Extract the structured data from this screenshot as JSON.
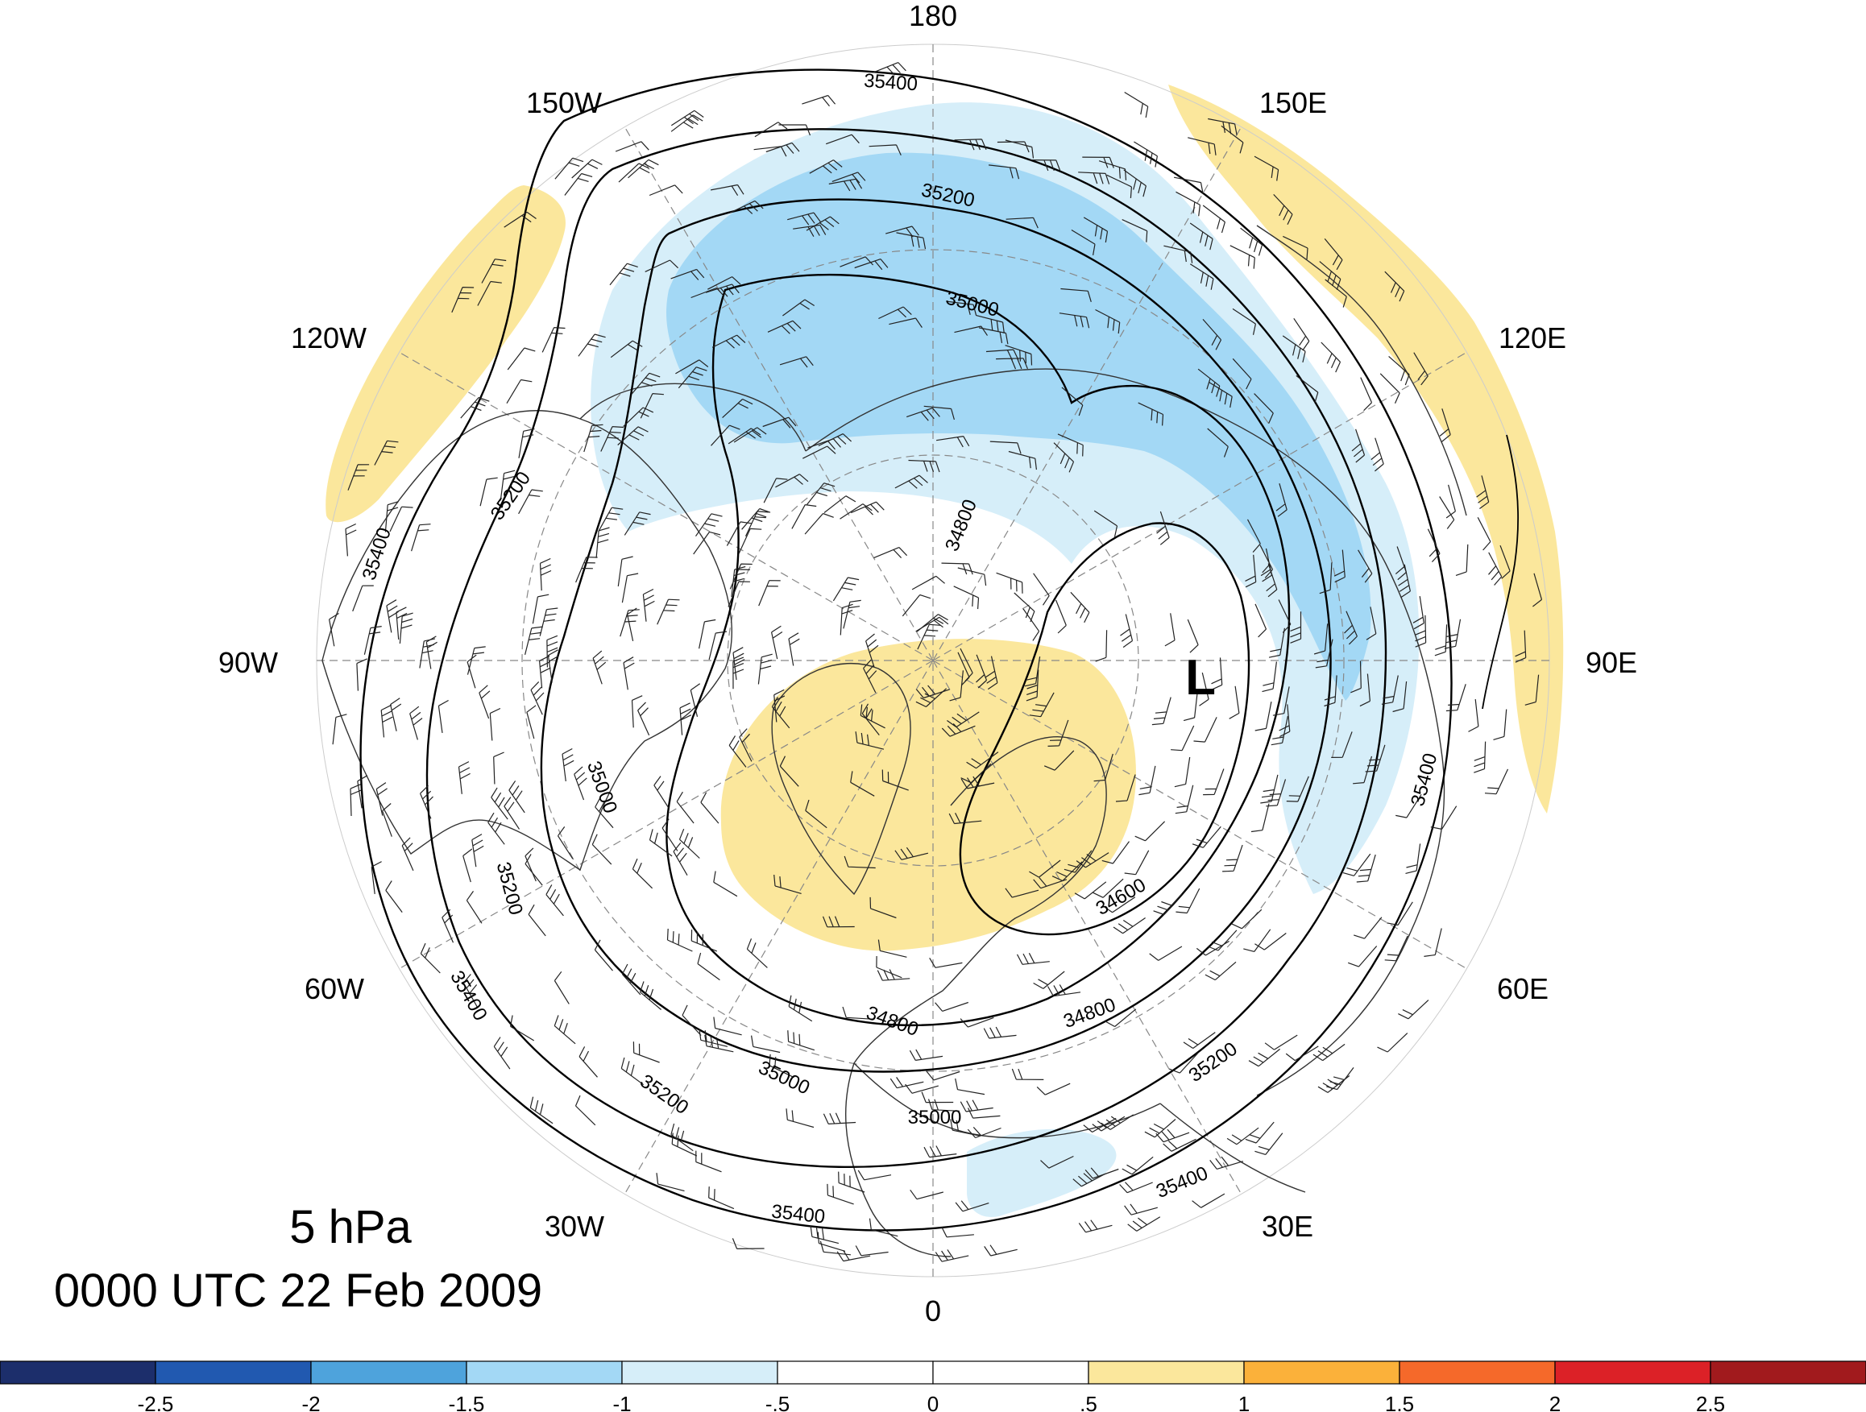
{
  "title": {
    "level": "5 hPa",
    "datetime": "0000 UTC 22 Feb 2009"
  },
  "longitude_labels": [
    {
      "id": "180",
      "text": "180"
    },
    {
      "id": "150E",
      "text": "150E"
    },
    {
      "id": "120E",
      "text": "120E"
    },
    {
      "id": "90E",
      "text": "90E"
    },
    {
      "id": "60E",
      "text": "60E"
    },
    {
      "id": "30E",
      "text": "30E"
    },
    {
      "id": "0",
      "text": "0"
    },
    {
      "id": "30W",
      "text": "30W"
    },
    {
      "id": "60W",
      "text": "60W"
    },
    {
      "id": "90W",
      "text": "90W"
    },
    {
      "id": "120W",
      "text": "120W"
    },
    {
      "id": "150W",
      "text": "150W"
    }
  ],
  "low_marker": "L",
  "contour_labels": [
    "35400",
    "35200",
    "35000",
    "34800",
    "34600",
    "35400",
    "35200",
    "35000",
    "34800",
    "35400",
    "35200",
    "35000",
    "34800",
    "35400",
    "35200",
    "35000",
    "35400",
    "35200"
  ],
  "colorbar": {
    "colors": [
      "#1c2e6b",
      "#2159b0",
      "#4ea3dc",
      "#a3d8f5",
      "#d6eef9",
      "#ffffff",
      "#ffffff",
      "#fbe79c",
      "#fbb13a",
      "#f5692a",
      "#dc2127",
      "#a11a1d"
    ],
    "ticks": [
      "-2.5",
      "-2",
      "-1.5",
      "-1",
      "-.5",
      "0",
      ".5",
      "1",
      "1.5",
      "2",
      "2.5"
    ]
  },
  "colors": {
    "shade_light_blue": "#d6eef9",
    "shade_mid_blue": "#a3d8f5",
    "shade_yellow": "#fbe79c",
    "contour": "#000000",
    "coastline": "#222222"
  }
}
